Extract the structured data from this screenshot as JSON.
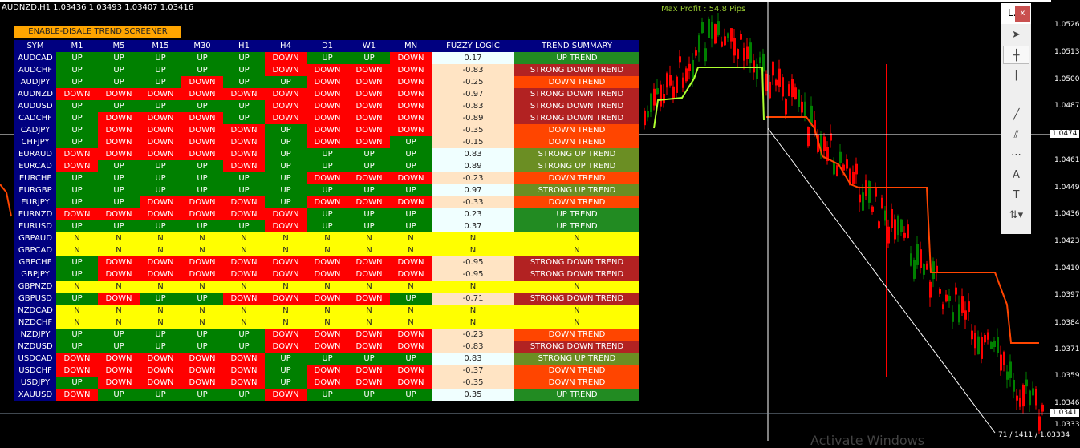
{
  "window": {
    "title": "AUDNZD,H1  1.03436 1.03493 1.03407 1.03416",
    "max_profit": "Max Profit : 54.8 Pips",
    "status": "71 / 1411 / 1.03334",
    "watermark": "Activate Windows"
  },
  "screener": {
    "toggle_label": "ENABLE-DISALE TREND SCREENER",
    "headers": [
      "SYM",
      "M1",
      "M5",
      "M15",
      "M30",
      "H1",
      "H4",
      "D1",
      "W1",
      "MN",
      "FUZZY LOGIC",
      "TREND SUMMARY"
    ],
    "rows": [
      [
        "AUDCAD",
        "UP",
        "UP",
        "UP",
        "UP",
        "UP",
        "DOWN",
        "UP",
        "UP",
        "DOWN",
        "0.17",
        "UP TREND"
      ],
      [
        "AUDCHF",
        "UP",
        "UP",
        "UP",
        "UP",
        "UP",
        "DOWN",
        "DOWN",
        "DOWN",
        "DOWN",
        "-0.83",
        "STRONG DOWN TREND"
      ],
      [
        "AUDJPY",
        "UP",
        "UP",
        "UP",
        "DOWN",
        "UP",
        "UP",
        "DOWN",
        "DOWN",
        "DOWN",
        "-0.25",
        "DOWN TREND"
      ],
      [
        "AUDNZD",
        "DOWN",
        "DOWN",
        "DOWN",
        "DOWN",
        "DOWN",
        "DOWN",
        "DOWN",
        "DOWN",
        "DOWN",
        "-0.97",
        "STRONG DOWN TREND"
      ],
      [
        "AUDUSD",
        "UP",
        "UP",
        "UP",
        "UP",
        "UP",
        "DOWN",
        "DOWN",
        "DOWN",
        "DOWN",
        "-0.83",
        "STRONG DOWN TREND"
      ],
      [
        "CADCHF",
        "UP",
        "DOWN",
        "DOWN",
        "DOWN",
        "UP",
        "DOWN",
        "DOWN",
        "DOWN",
        "DOWN",
        "-0.89",
        "STRONG DOWN TREND"
      ],
      [
        "CADJPY",
        "UP",
        "DOWN",
        "DOWN",
        "DOWN",
        "DOWN",
        "UP",
        "DOWN",
        "DOWN",
        "DOWN",
        "-0.35",
        "DOWN TREND"
      ],
      [
        "CHFJPY",
        "UP",
        "DOWN",
        "DOWN",
        "DOWN",
        "DOWN",
        "UP",
        "DOWN",
        "DOWN",
        "UP",
        "-0.15",
        "DOWN TREND"
      ],
      [
        "EURAUD",
        "DOWN",
        "DOWN",
        "DOWN",
        "DOWN",
        "DOWN",
        "UP",
        "UP",
        "UP",
        "UP",
        "0.83",
        "STRONG UP TREND"
      ],
      [
        "EURCAD",
        "DOWN",
        "UP",
        "UP",
        "UP",
        "DOWN",
        "UP",
        "UP",
        "UP",
        "UP",
        "0.89",
        "STRONG UP TREND"
      ],
      [
        "EURCHF",
        "UP",
        "UP",
        "UP",
        "UP",
        "UP",
        "UP",
        "DOWN",
        "DOWN",
        "DOWN",
        "-0.23",
        "DOWN TREND"
      ],
      [
        "EURGBP",
        "UP",
        "UP",
        "UP",
        "UP",
        "UP",
        "UP",
        "UP",
        "UP",
        "UP",
        "0.97",
        "STRONG UP TREND"
      ],
      [
        "EURJPY",
        "UP",
        "UP",
        "DOWN",
        "DOWN",
        "DOWN",
        "UP",
        "DOWN",
        "DOWN",
        "DOWN",
        "-0.33",
        "DOWN TREND"
      ],
      [
        "EURNZD",
        "DOWN",
        "DOWN",
        "DOWN",
        "DOWN",
        "DOWN",
        "DOWN",
        "UP",
        "UP",
        "UP",
        "0.23",
        "UP TREND"
      ],
      [
        "EURUSD",
        "UP",
        "UP",
        "UP",
        "UP",
        "UP",
        "DOWN",
        "UP",
        "UP",
        "UP",
        "0.37",
        "UP TREND"
      ],
      [
        "GBPAUD",
        "N",
        "N",
        "N",
        "N",
        "N",
        "N",
        "N",
        "N",
        "N",
        "N",
        "N"
      ],
      [
        "GBPCAD",
        "N",
        "N",
        "N",
        "N",
        "N",
        "N",
        "N",
        "N",
        "N",
        "N",
        "N"
      ],
      [
        "GBPCHF",
        "UP",
        "DOWN",
        "DOWN",
        "DOWN",
        "DOWN",
        "DOWN",
        "DOWN",
        "DOWN",
        "DOWN",
        "-0.95",
        "STRONG DOWN TREND"
      ],
      [
        "GBPJPY",
        "UP",
        "DOWN",
        "DOWN",
        "DOWN",
        "DOWN",
        "DOWN",
        "DOWN",
        "DOWN",
        "DOWN",
        "-0.95",
        "STRONG DOWN TREND"
      ],
      [
        "GBPNZD",
        "N",
        "N",
        "N",
        "N",
        "N",
        "N",
        "N",
        "N",
        "N",
        "N",
        "N"
      ],
      [
        "GBPUSD",
        "UP",
        "DOWN",
        "UP",
        "UP",
        "DOWN",
        "DOWN",
        "DOWN",
        "DOWN",
        "UP",
        "-0.71",
        "STRONG DOWN TREND"
      ],
      [
        "NZDCAD",
        "N",
        "N",
        "N",
        "N",
        "N",
        "N",
        "N",
        "N",
        "N",
        "N",
        "N"
      ],
      [
        "NZDCHF",
        "N",
        "N",
        "N",
        "N",
        "N",
        "N",
        "N",
        "N",
        "N",
        "N",
        "N"
      ],
      [
        "NZDJPY",
        "UP",
        "UP",
        "UP",
        "UP",
        "UP",
        "DOWN",
        "DOWN",
        "DOWN",
        "DOWN",
        "-0.23",
        "DOWN TREND"
      ],
      [
        "NZDUSD",
        "UP",
        "UP",
        "UP",
        "UP",
        "UP",
        "DOWN",
        "DOWN",
        "DOWN",
        "DOWN",
        "-0.83",
        "STRONG DOWN TREND"
      ],
      [
        "USDCAD",
        "DOWN",
        "DOWN",
        "DOWN",
        "DOWN",
        "DOWN",
        "UP",
        "UP",
        "UP",
        "UP",
        "0.83",
        "STRONG UP TREND"
      ],
      [
        "USDCHF",
        "DOWN",
        "DOWN",
        "DOWN",
        "DOWN",
        "DOWN",
        "UP",
        "DOWN",
        "DOWN",
        "DOWN",
        "-0.37",
        "DOWN TREND"
      ],
      [
        "USDJPY",
        "UP",
        "DOWN",
        "DOWN",
        "DOWN",
        "DOWN",
        "UP",
        "DOWN",
        "DOWN",
        "DOWN",
        "-0.35",
        "DOWN TREND"
      ],
      [
        "XAUUSD",
        "DOWN",
        "UP",
        "UP",
        "UP",
        "UP",
        "DOWN",
        "UP",
        "UP",
        "UP",
        "0.35",
        "UP TREND"
      ]
    ]
  },
  "colors": {
    "up": "#008000",
    "down": "#ff0000",
    "neutral": "#ffff00",
    "header": "#000080",
    "up_trend": "#228b22",
    "strong_up_trend": "#6b8e23",
    "down_trend": "#ff4500",
    "strong_down_trend": "#b22222"
  },
  "price_axis": [
    "1.0526",
    "1.0513",
    "1.0500",
    "1.0487",
    "1.0474",
    "1.0461",
    "1.0449",
    "1.0436",
    "1.0423",
    "1.0410",
    "1.0397",
    "1.0384",
    "1.0371",
    "1.0359",
    "1.0346",
    "1.0341",
    "1.0333"
  ],
  "toolbar": {
    "title": "L.",
    "close": "x",
    "tools": [
      "cursor-icon",
      "crosshair-icon",
      "vertical-line-icon",
      "horizontal-line-icon",
      "trendline-icon",
      "equidistant-channel-icon",
      "fibonacci-icon",
      "text-icon",
      "text-label-icon",
      "arrows-icon"
    ],
    "glyphs": [
      "➤",
      "┼",
      "|",
      "—",
      "╱",
      "⫽",
      "⋯",
      "A",
      "T",
      "⇅▾"
    ]
  }
}
